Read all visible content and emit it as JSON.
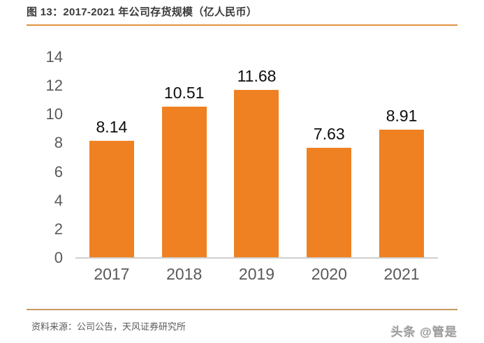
{
  "header": {
    "title": "图 13：2017-2021 年公司存货规模（亿人民币）",
    "rule_color": "#E0913F"
  },
  "chart_data": {
    "type": "bar",
    "title": "图 13：2017-2021 年公司存货规模（亿人民币）",
    "categories": [
      "2017",
      "2018",
      "2019",
      "2020",
      "2021"
    ],
    "values": [
      8.14,
      10.51,
      11.68,
      7.63,
      8.91
    ],
    "value_labels": [
      "8.14",
      "10.51",
      "11.68",
      "7.63",
      "8.91"
    ],
    "xlabel": "",
    "ylabel": "",
    "ylim": [
      0,
      14
    ],
    "yticks": [
      0,
      2,
      4,
      6,
      8,
      10,
      12,
      14
    ],
    "bar_color": "#EF8122",
    "axis_line_color": "#cfcfcf",
    "tick_label_color": "#595959",
    "value_label_color": "#0d0d0d",
    "grid": false,
    "legend": "none"
  },
  "footer": {
    "rule_color": "#C49A62",
    "source": "资料来源：公司公告，天风证券研究所",
    "watermark": "头条 @管是"
  }
}
